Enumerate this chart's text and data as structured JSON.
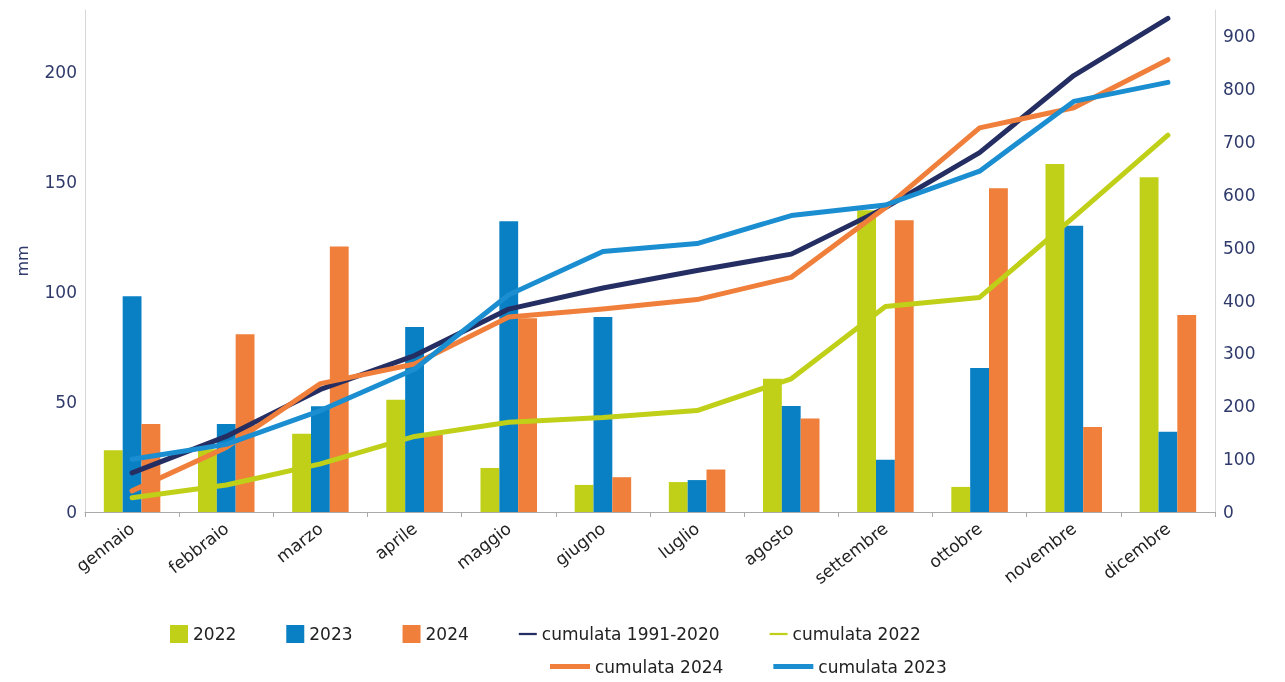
{
  "chart_data": {
    "type": "bar",
    "ylabel": "mm",
    "categories": [
      "gennaio",
      "febbraio",
      "marzo",
      "aprile",
      "maggio",
      "giugno",
      "luglio",
      "agosto",
      "settembre",
      "ottobre",
      "novembre",
      "dicembre"
    ],
    "series": [
      {
        "name": "2022",
        "color": "#c0d018",
        "values": [
          28,
          28.5,
          35.5,
          51,
          20,
          12.3,
          13.6,
          60.5,
          137,
          11.4,
          158,
          152
        ]
      },
      {
        "name": "2023",
        "color": "#0a80c4",
        "values": [
          98,
          40,
          48,
          84,
          132,
          88.6,
          14.5,
          48.2,
          23.7,
          65.4,
          130,
          36.4
        ]
      },
      {
        "name": "2024",
        "color": "#ef7f3a",
        "values": [
          40,
          80.7,
          120.6,
          35,
          88,
          15.8,
          19.3,
          42.5,
          132.5,
          147,
          38.6,
          89.5
        ]
      },
      {
        "name": "cumulata 1991-2020",
        "type": "line",
        "axis": "y2",
        "color": "#252e62",
        "values": [
          74,
          143,
          232,
          296,
          384,
          424,
          457,
          488,
          576,
          680,
          826,
          934
        ]
      },
      {
        "name": "cumulata 2022",
        "type": "line",
        "axis": "y2",
        "color": "#c0d018",
        "values": [
          27,
          51,
          91,
          143,
          170,
          179,
          192,
          252,
          389,
          406,
          558,
          713
        ]
      },
      {
        "name": "cumulata 2024",
        "type": "line",
        "axis": "y2",
        "color": "#ef7f3a",
        "values": [
          40,
          122,
          243,
          280,
          369,
          384,
          402,
          444,
          576,
          727,
          765,
          856
        ]
      },
      {
        "name": "cumulata 2023",
        "type": "line",
        "axis": "y2",
        "color": "#1a8ed0",
        "values": [
          100,
          128,
          192,
          270,
          411,
          493,
          508,
          561,
          581,
          645,
          777,
          813
        ]
      }
    ],
    "ylim": [
      0,
      228
    ],
    "yticks": [
      0,
      50,
      100,
      150,
      200
    ],
    "y2lim": [
      0,
      950
    ],
    "y2ticks": [
      0,
      100,
      200,
      300,
      400,
      500,
      600,
      700,
      800,
      900
    ],
    "grid": false,
    "legend": "bottom",
    "marker": "none",
    "line_style": "solid"
  }
}
